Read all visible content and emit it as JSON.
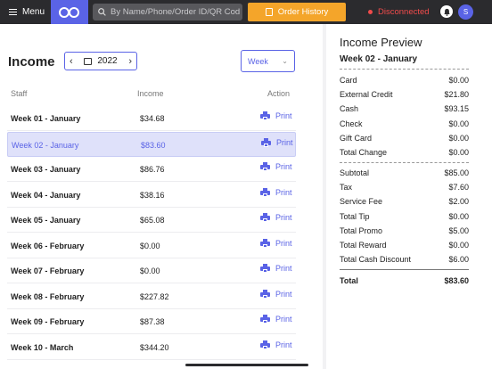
{
  "topbar": {
    "menu_label": "Menu",
    "search_placeholder": "By Name/Phone/Order ID/QR Code",
    "order_history_label": "Order History",
    "status_text": "Disconnected",
    "avatar_initial": "S",
    "colors": {
      "bar": "#2b2b2e",
      "accent": "#5a63e6",
      "order_button": "#f4a52a",
      "status": "#f04b4b"
    }
  },
  "income": {
    "title": "Income",
    "year": "2022",
    "period": "Week",
    "columns": {
      "staff": "Staff",
      "income": "Income",
      "action": "Action"
    },
    "print_label": "Print",
    "rows": [
      {
        "name": "Week 01 - January",
        "amount": "$34.68",
        "selected": false
      },
      {
        "name": "Week 02 - January",
        "amount": "$83.60",
        "selected": true
      },
      {
        "name": "Week 03 - January",
        "amount": "$86.76",
        "selected": false
      },
      {
        "name": "Week 04 - January",
        "amount": "$38.16",
        "selected": false
      },
      {
        "name": "Week 05 - January",
        "amount": "$65.08",
        "selected": false
      },
      {
        "name": "Week 06 - February",
        "amount": "$0.00",
        "selected": false
      },
      {
        "name": "Week 07 - February",
        "amount": "$0.00",
        "selected": false
      },
      {
        "name": "Week 08 - February",
        "amount": "$227.82",
        "selected": false
      },
      {
        "name": "Week 09 - February",
        "amount": "$87.38",
        "selected": false
      },
      {
        "name": "Week 10 - March",
        "amount": "$344.20",
        "selected": false
      }
    ]
  },
  "preview": {
    "title": "Income Preview",
    "subtitle": "Week 02 - January",
    "payments": [
      {
        "label": "Card",
        "value": "$0.00"
      },
      {
        "label": "External Credit",
        "value": "$21.80"
      },
      {
        "label": "Cash",
        "value": "$93.15"
      },
      {
        "label": "Check",
        "value": "$0.00"
      },
      {
        "label": "Gift Card",
        "value": "$0.00"
      },
      {
        "label": "Total Change",
        "value": "$0.00"
      }
    ],
    "summary": [
      {
        "label": "Subtotal",
        "value": "$85.00"
      },
      {
        "label": "Tax",
        "value": "$7.60"
      },
      {
        "label": "Service Fee",
        "value": "$2.00"
      },
      {
        "label": "Total Tip",
        "value": "$0.00"
      },
      {
        "label": "Total Promo",
        "value": "$5.00"
      },
      {
        "label": "Total Reward",
        "value": "$0.00"
      },
      {
        "label": "Total Cash Discount",
        "value": "$6.00"
      }
    ],
    "total": {
      "label": "Total",
      "value": "$83.60"
    }
  }
}
